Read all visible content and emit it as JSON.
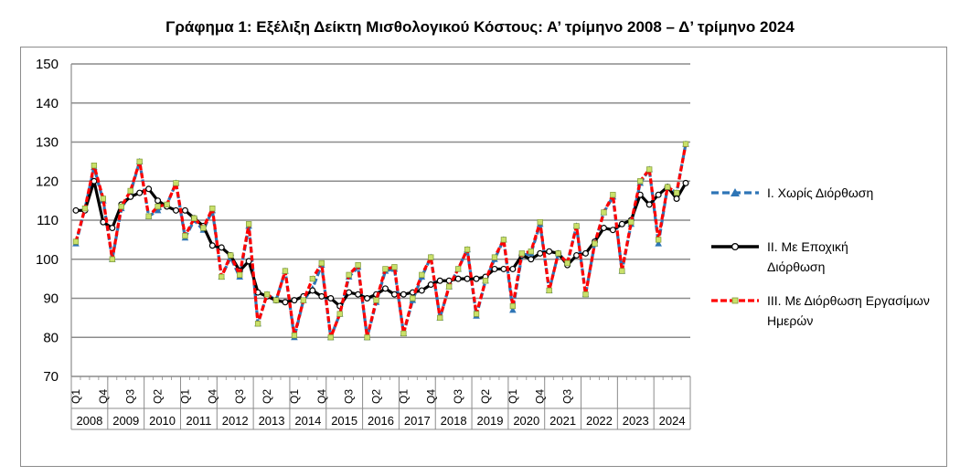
{
  "chart_data": {
    "type": "line",
    "title": "Γράφημα 1: Εξέλιξη Δείκτη Μισθολογικού Κόστους:  Α’ τρίμηνο 2008 – Δ’ τρίμηνο 2024",
    "xlabel": "",
    "ylabel": "",
    "ylim": [
      70,
      150
    ],
    "yticks": [
      70,
      80,
      90,
      100,
      110,
      120,
      130,
      140,
      150
    ],
    "grid": true,
    "legend_position": "right",
    "quarter_tick_labels": [
      "Q1",
      "Q4",
      "Q3",
      "Q2",
      "Q1",
      "Q4",
      "Q3",
      "Q2",
      "Q1",
      "Q4",
      "Q3",
      "Q2",
      "Q1",
      "Q4",
      "Q3",
      "Q2",
      "Q1",
      "Q4",
      "Q3"
    ],
    "years": [
      "2008",
      "2009",
      "2010",
      "2011",
      "2012",
      "2013",
      "2014",
      "2015",
      "2016",
      "2017",
      "2018",
      "2019",
      "2020",
      "2021",
      "2022",
      "2023",
      "2024"
    ],
    "series": [
      {
        "name": "I. Χωρίς Διόρθωση",
        "color": "#2e75b6",
        "values": [
          104,
          113,
          123.5,
          115,
          100,
          113,
          117,
          125,
          111,
          112.5,
          114,
          119.5,
          105.5,
          110,
          107.5,
          112.5,
          95.5,
          100.5,
          95.5,
          108.5,
          83.5,
          91,
          89.5,
          97,
          80,
          89.5,
          92.5,
          98.5,
          80,
          86,
          95.5,
          98,
          80,
          89,
          97,
          97.5,
          81,
          89.5,
          95.5,
          100.5,
          85,
          93,
          97.5,
          102.5,
          85.5,
          94.5,
          100,
          105,
          87,
          101,
          101.5,
          109,
          92,
          101.5,
          99,
          108.5,
          91,
          104,
          112,
          116,
          97,
          109,
          119.5,
          123,
          104,
          118.5,
          117,
          129.5
        ]
      },
      {
        "name": "II. Με Εποχική Διόρθωση",
        "color": "#000000",
        "values": [
          112.5,
          112.5,
          120,
          109.5,
          108,
          114,
          116,
          117,
          118,
          115,
          113.5,
          112.5,
          112.5,
          110.5,
          108.5,
          103.5,
          103,
          101,
          97,
          99.5,
          91.5,
          90.5,
          89.5,
          89,
          89.5,
          90.5,
          92,
          90.5,
          90,
          88,
          91.5,
          91,
          90,
          91,
          92.5,
          91,
          91,
          91.5,
          92,
          93.5,
          94.5,
          94.5,
          95,
          95,
          95,
          95.5,
          97.5,
          97.5,
          97.5,
          101,
          100,
          101.5,
          102,
          101.5,
          98.5,
          101,
          101.5,
          104.5,
          108,
          107.5,
          109,
          110,
          116.5,
          114,
          116.5,
          118.5,
          115.5,
          119.5
        ]
      },
      {
        "name": "III. Με Διόρθωση Εργασίμων Ημερών",
        "color": "#ff0000",
        "values": [
          104.5,
          113,
          124,
          115.5,
          100,
          113.5,
          117.5,
          125,
          111,
          113.5,
          114,
          119.5,
          106,
          110.5,
          108,
          113,
          95.5,
          101,
          96,
          109,
          83.5,
          91,
          89.5,
          97,
          80.5,
          89.5,
          95,
          99,
          80,
          86,
          96,
          98.5,
          80,
          89.5,
          97.5,
          98,
          81,
          90,
          96,
          100.5,
          85,
          93,
          97.5,
          102.5,
          86,
          94.5,
          100.5,
          105,
          88,
          101.5,
          102,
          109.5,
          92,
          101.5,
          99,
          108.5,
          91,
          104,
          112,
          116.5,
          97,
          109.5,
          120,
          123,
          105,
          118.5,
          117,
          129.5
        ]
      }
    ]
  }
}
